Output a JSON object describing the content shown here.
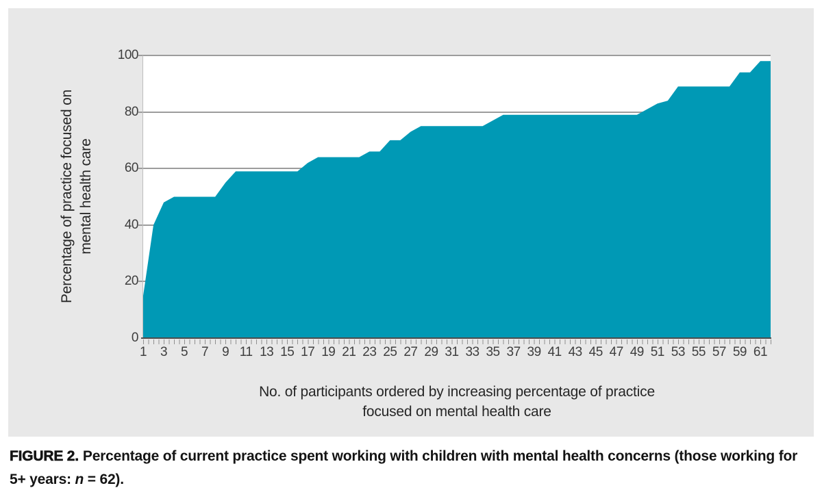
{
  "chart_data": {
    "type": "area",
    "x": [
      1,
      2,
      3,
      4,
      5,
      6,
      7,
      8,
      9,
      10,
      11,
      12,
      13,
      14,
      15,
      16,
      17,
      18,
      19,
      20,
      21,
      22,
      23,
      24,
      25,
      26,
      27,
      28,
      29,
      30,
      31,
      32,
      33,
      34,
      35,
      36,
      37,
      38,
      39,
      40,
      41,
      42,
      43,
      44,
      45,
      46,
      47,
      48,
      49,
      50,
      51,
      52,
      53,
      54,
      55,
      56,
      57,
      58,
      59,
      60,
      61,
      62
    ],
    "values": [
      15,
      40,
      48,
      50,
      50,
      50,
      50,
      50,
      55,
      59,
      59,
      59,
      59,
      59,
      59,
      59,
      62,
      64,
      64,
      64,
      64,
      64,
      66,
      66,
      70,
      70,
      73,
      75,
      75,
      75,
      75,
      75,
      75,
      75,
      77,
      79,
      79,
      79,
      79,
      79,
      79,
      79,
      79,
      79,
      79,
      79,
      79,
      79,
      79,
      81,
      83,
      84,
      89,
      89,
      89,
      89,
      89,
      89,
      94,
      94,
      98,
      98
    ],
    "n_points": 62,
    "xlabel": "No. of participants ordered by increasing percentage of practice focused on mental health care",
    "ylabel": "Percentage of practice focused on mental health care",
    "xlabel_lines": [
      "No. of participants ordered by increasing percentage of practice",
      "focused on mental health care"
    ],
    "ylabel_lines": [
      "Percentage of practice focused on",
      "mental health care"
    ],
    "ylim": [
      0,
      100
    ],
    "yticks": [
      0,
      20,
      40,
      60,
      80,
      100
    ],
    "xtick_labels": [
      1,
      3,
      5,
      7,
      9,
      11,
      13,
      15,
      17,
      19,
      21,
      23,
      25,
      27,
      29,
      31,
      33,
      35,
      37,
      39,
      41,
      43,
      45,
      47,
      49,
      51,
      53,
      55,
      57,
      59,
      61
    ],
    "grid": true,
    "legend": "none",
    "fill_color": "#0099b5",
    "gridline_color": "#9c9c9c",
    "panel_background": "#e8e8e8",
    "plot_background": "#ffffff"
  },
  "caption": {
    "label": "FIGURE 2.",
    "text_before_n": "Percentage of current practice spent working with children with mental health concerns (those working for 5+ years: ",
    "n_var": "n",
    "text_after_n": " = 62)."
  }
}
